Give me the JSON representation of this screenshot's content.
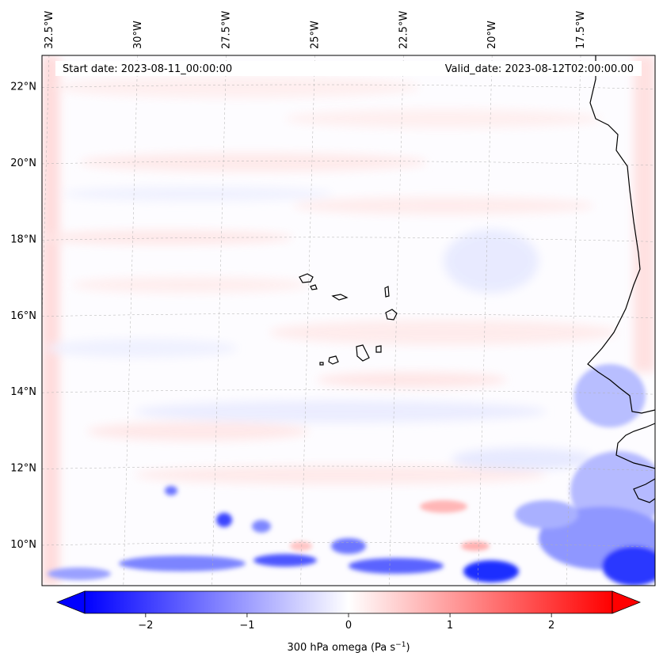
{
  "map": {
    "start_date_label": "Start date: 2023-08-11_00:00:00",
    "valid_date_label": "Valid_date: 2023-08-12T02:00:00.00",
    "lon_ticks": [
      {
        "lon": -32.5,
        "label": "32.5°W"
      },
      {
        "lon": -30.0,
        "label": "30°W"
      },
      {
        "lon": -27.5,
        "label": "27.5°W"
      },
      {
        "lon": -25.0,
        "label": "25°W"
      },
      {
        "lon": -22.5,
        "label": "22.5°W"
      },
      {
        "lon": -20.0,
        "label": "20°W"
      },
      {
        "lon": -17.5,
        "label": "17.5°W"
      }
    ],
    "lat_ticks": [
      {
        "lat": 22,
        "label": "22°N"
      },
      {
        "lat": 20,
        "label": "20°N"
      },
      {
        "lat": 18,
        "label": "18°N"
      },
      {
        "lat": 16,
        "label": "16°N"
      },
      {
        "lat": 14,
        "label": "14°N"
      },
      {
        "lat": 12,
        "label": "12°N"
      },
      {
        "lat": 10,
        "label": "10°N"
      }
    ],
    "extent": {
      "lon_min": -32.7,
      "lon_max": -15.4,
      "lat_min": 8.9,
      "lat_max": 22.8
    },
    "colors": {
      "negative": "#0000ff",
      "neutral": "#ffffff",
      "positive": "#ff0000",
      "coastline": "#000000",
      "gridline": "#b0b0b0"
    }
  },
  "colorbar": {
    "title": "300 hPa omega (Pa s",
    "title_superscript": "−1",
    "title_suffix": ")",
    "min": -2.6,
    "max": 2.6,
    "ticks": [
      {
        "value": -2,
        "label": "−2"
      },
      {
        "value": -1,
        "label": "−1"
      },
      {
        "value": 0,
        "label": "0"
      },
      {
        "value": 1,
        "label": "1"
      },
      {
        "value": 2,
        "label": "2"
      }
    ]
  }
}
